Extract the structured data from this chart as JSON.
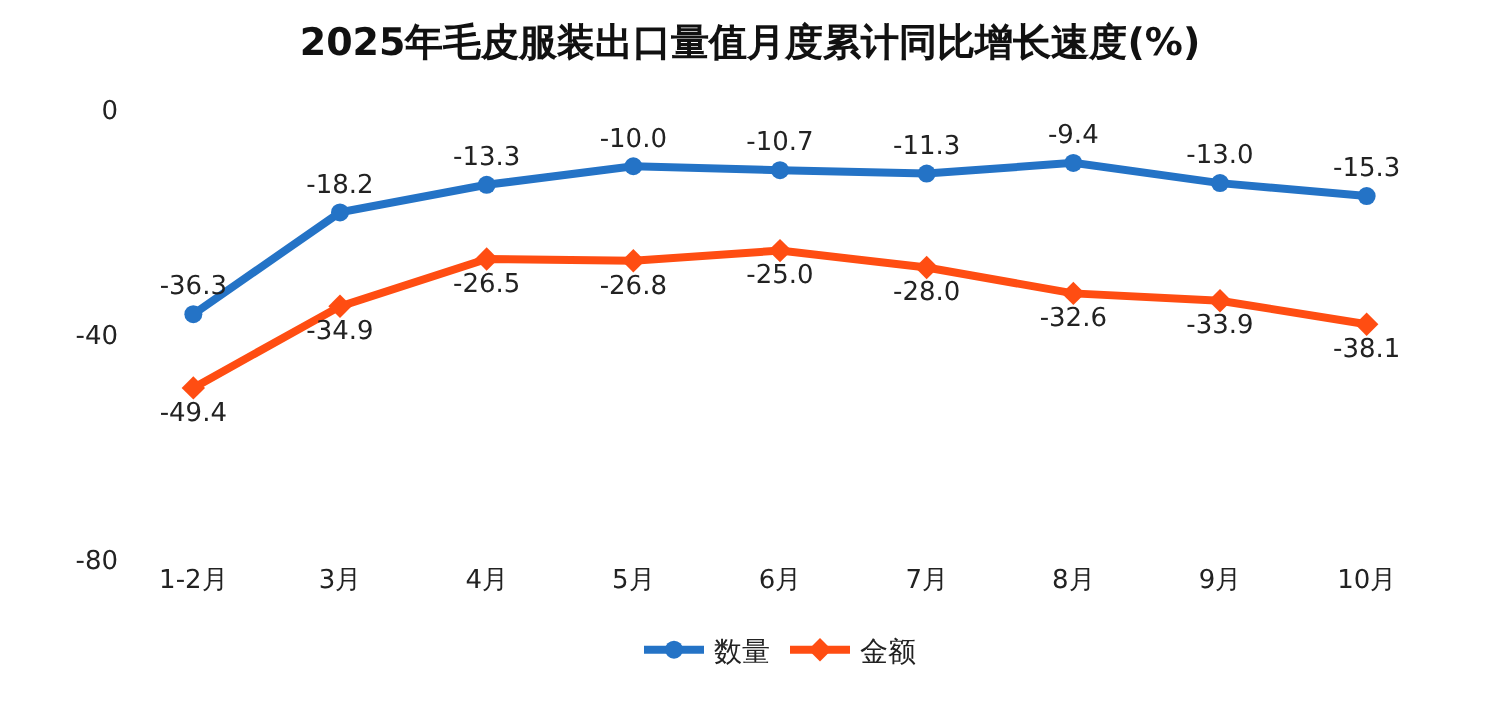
{
  "chart_data": {
    "type": "line",
    "title": "2025年毛皮服装出口量值月度累计同比增长速度(%)",
    "categories": [
      "1-2月",
      "3月",
      "4月",
      "5月",
      "6月",
      "7月",
      "8月",
      "9月",
      "10月"
    ],
    "series": [
      {
        "name": "数量",
        "color": "#2473c6",
        "marker": "circle",
        "values": [
          -36.3,
          -18.2,
          -13.3,
          -10.0,
          -10.7,
          -11.3,
          -9.4,
          -13.0,
          -15.3
        ],
        "value_labels": [
          "-36.3",
          "-18.2",
          "-13.3",
          "-10.0",
          "-10.7",
          "-11.3",
          "-9.4",
          "-13.0",
          "-15.3"
        ]
      },
      {
        "name": "金额",
        "color": "#ff4d12",
        "marker": "diamond",
        "values": [
          -49.4,
          -34.9,
          -26.5,
          -26.8,
          -25.0,
          -28.0,
          -32.6,
          -33.9,
          -38.1
        ],
        "value_labels": [
          "-49.4",
          "-34.9",
          "-26.5",
          "-26.8",
          "-25.0",
          "-28.0",
          "-32.6",
          "-33.9",
          "-38.1"
        ]
      }
    ],
    "ylim": [
      -80,
      0
    ],
    "yticks": [
      0,
      -40,
      -80
    ],
    "legend": "bottom",
    "line_style": "solid"
  }
}
